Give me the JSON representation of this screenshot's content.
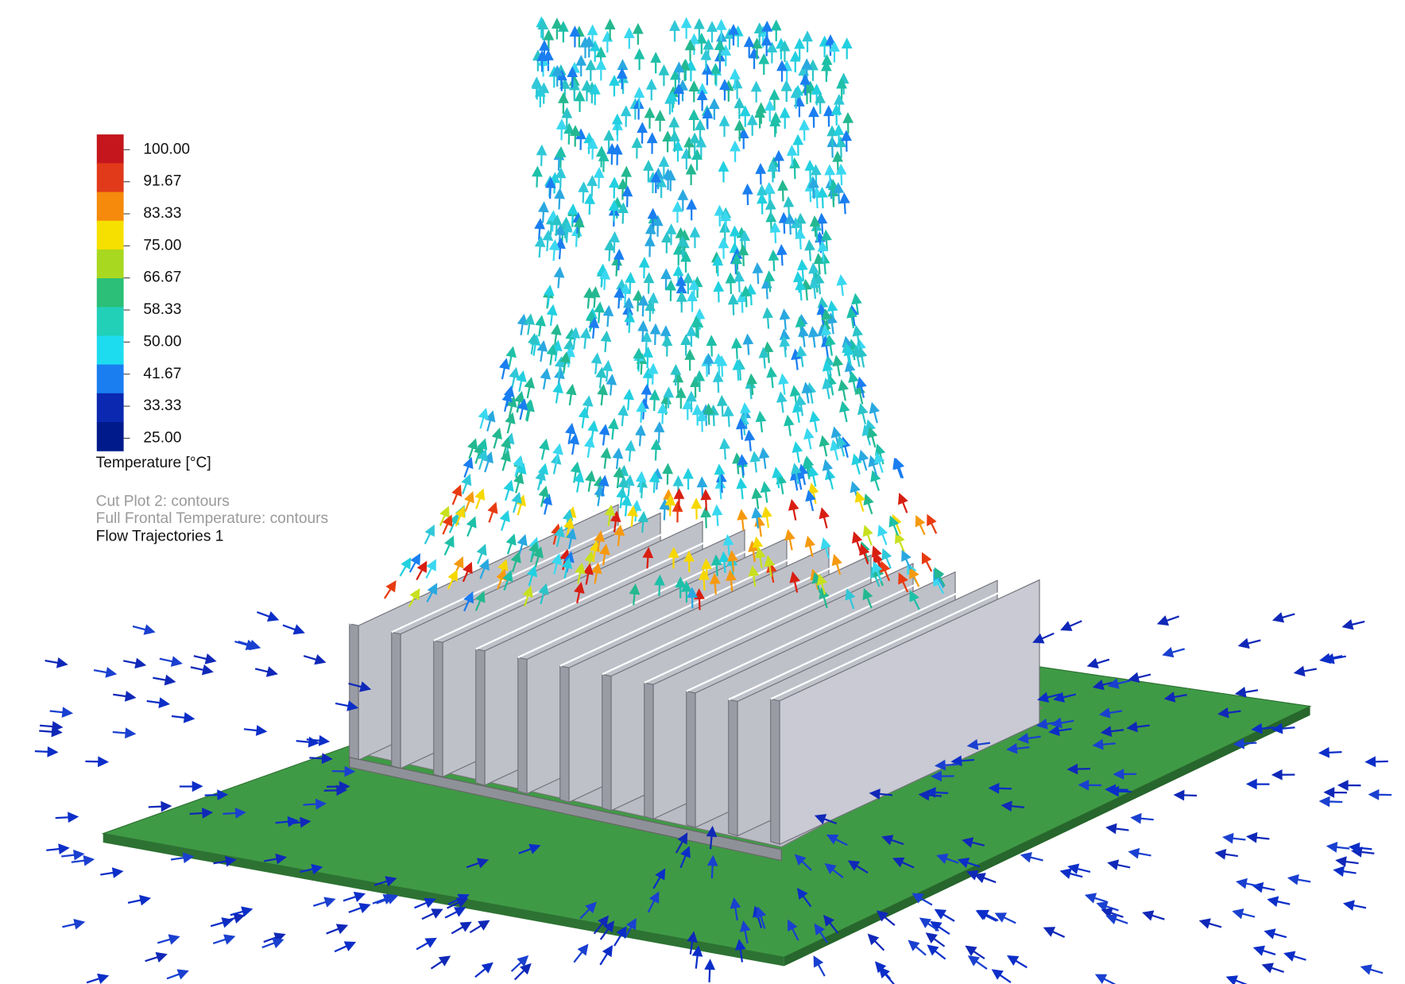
{
  "legend": {
    "labels": [
      "100.00",
      "91.67",
      "83.33",
      "75.00",
      "66.67",
      "58.33",
      "50.00",
      "41.67",
      "33.33",
      "25.00"
    ],
    "title": "Temperature [°C]",
    "colors": [
      "#c4161c",
      "#e03a1a",
      "#f58a0c",
      "#f6e000",
      "#a8d820",
      "#2bbf78",
      "#22d0b8",
      "#1edcf0",
      "#1a7ef0",
      "#0a28b0",
      "#001a8c"
    ]
  },
  "plots": [
    "Cut Plot 2: contours",
    "Full Frontal Temperature: contours",
    "Flow Trajectories 1"
  ]
}
